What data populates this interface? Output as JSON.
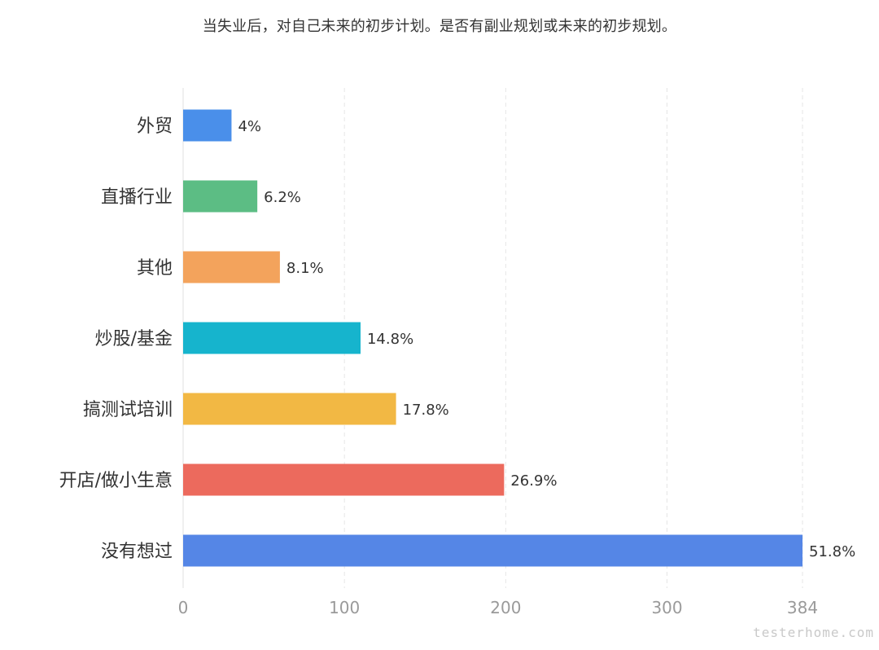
{
  "chart_data": {
    "type": "bar",
    "orientation": "horizontal",
    "title": "当失业后，对自己未来的初步计划。是否有副业规划或未来的初步规划。",
    "categories": [
      "外贸",
      "直播行业",
      "其他",
      "炒股/基金",
      "搞测试培训",
      "开店/做小生意",
      "没有想过"
    ],
    "values": [
      30,
      46,
      60,
      110,
      132,
      199,
      384
    ],
    "data_labels": [
      "4%",
      "6.2%",
      "8.1%",
      "14.8%",
      "17.8%",
      "26.9%",
      "51.8%"
    ],
    "bar_colors": [
      "#4a8fea",
      "#5cbd84",
      "#f3a35c",
      "#16b4cd",
      "#f2b844",
      "#ec6a5d",
      "#5586e6"
    ],
    "xlim": [
      0,
      384
    ],
    "x_ticks": [
      "0",
      "100",
      "200",
      "300",
      "384"
    ],
    "x_tick_values": [
      0,
      100,
      200,
      300,
      384
    ],
    "grid": true,
    "legend": "none",
    "xlabel": "",
    "ylabel": ""
  },
  "watermark": "testerhome.com"
}
